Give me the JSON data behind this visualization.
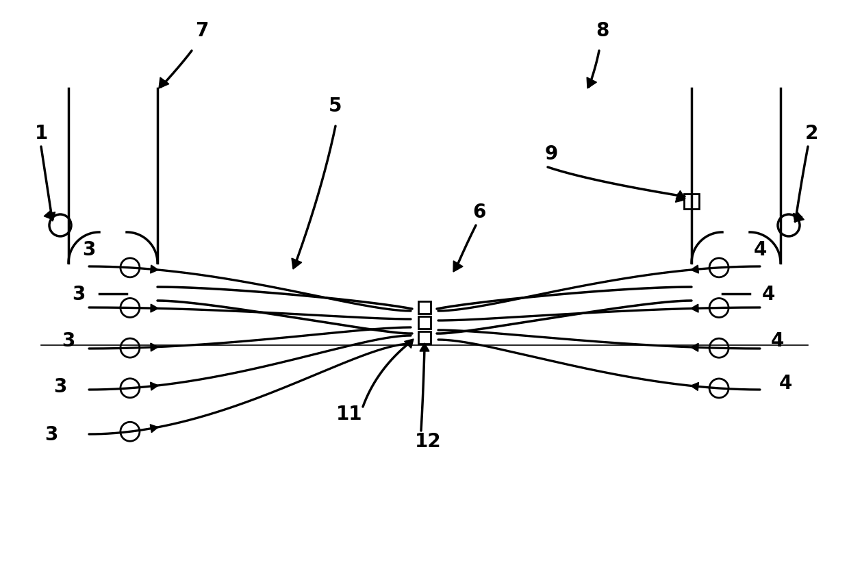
{
  "bg_color": "#ffffff",
  "line_color": "#000000",
  "lw": 2.5,
  "fig_w": 12.4,
  "fig_h": 8.29,
  "label_fs": 20,
  "label_fw": "bold"
}
